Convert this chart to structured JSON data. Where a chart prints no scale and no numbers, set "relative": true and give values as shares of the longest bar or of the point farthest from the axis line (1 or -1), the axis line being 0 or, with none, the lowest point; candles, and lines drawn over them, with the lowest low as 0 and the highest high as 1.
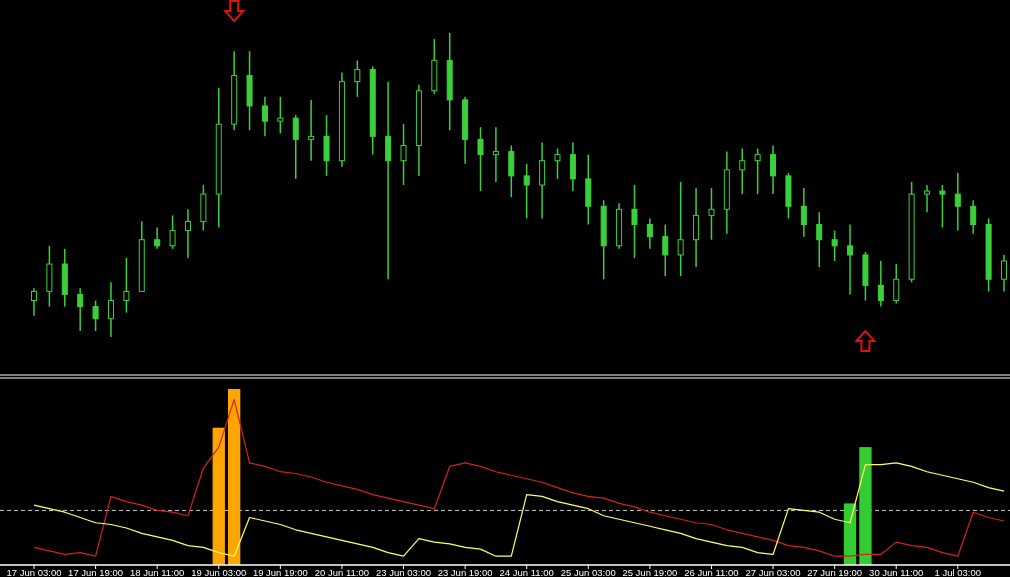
{
  "chart_data": [
    {
      "type": "candlestick",
      "relative": true,
      "color": "#3ccf3c",
      "ohlc": [
        [
          0.12,
          0.16,
          0.07,
          0.15
        ],
        [
          0.15,
          0.3,
          0.1,
          0.24
        ],
        [
          0.24,
          0.29,
          0.1,
          0.14
        ],
        [
          0.14,
          0.16,
          0.02,
          0.1
        ],
        [
          0.1,
          0.12,
          0.02,
          0.06
        ],
        [
          0.06,
          0.18,
          0,
          0.12
        ],
        [
          0.12,
          0.26,
          0.08,
          0.15
        ],
        [
          0.15,
          0.38,
          0.15,
          0.32
        ],
        [
          0.32,
          0.36,
          0.29,
          0.3
        ],
        [
          0.3,
          0.4,
          0.29,
          0.35
        ],
        [
          0.35,
          0.42,
          0.26,
          0.38
        ],
        [
          0.38,
          0.5,
          0.35,
          0.47
        ],
        [
          0.47,
          0.82,
          0.36,
          0.7
        ],
        [
          0.7,
          0.94,
          0.68,
          0.86
        ],
        [
          0.86,
          0.94,
          0.68,
          0.76
        ],
        [
          0.76,
          0.79,
          0.66,
          0.71
        ],
        [
          0.71,
          0.79,
          0.67,
          0.72
        ],
        [
          0.72,
          0.73,
          0.52,
          0.65
        ],
        [
          0.65,
          0.78,
          0.58,
          0.66
        ],
        [
          0.66,
          0.73,
          0.53,
          0.58
        ],
        [
          0.58,
          0.87,
          0.56,
          0.84
        ],
        [
          0.84,
          0.91,
          0.79,
          0.88
        ],
        [
          0.88,
          0.89,
          0.6,
          0.66
        ],
        [
          0.66,
          0.84,
          0.19,
          0.58
        ],
        [
          0.58,
          0.7,
          0.5,
          0.63
        ],
        [
          0.63,
          0.83,
          0.53,
          0.81
        ],
        [
          0.81,
          0.98,
          0.8,
          0.91
        ],
        [
          0.91,
          1,
          0.68,
          0.78
        ],
        [
          0.78,
          0.79,
          0.57,
          0.65
        ],
        [
          0.65,
          0.69,
          0.48,
          0.6
        ],
        [
          0.6,
          0.69,
          0.51,
          0.61
        ],
        [
          0.61,
          0.63,
          0.46,
          0.53
        ],
        [
          0.53,
          0.57,
          0.39,
          0.5
        ],
        [
          0.5,
          0.64,
          0.39,
          0.58
        ],
        [
          0.58,
          0.62,
          0.52,
          0.6
        ],
        [
          0.6,
          0.64,
          0.48,
          0.52
        ],
        [
          0.52,
          0.6,
          0.37,
          0.43
        ],
        [
          0.43,
          0.45,
          0.19,
          0.3
        ],
        [
          0.3,
          0.44,
          0.29,
          0.42
        ],
        [
          0.42,
          0.5,
          0.26,
          0.37
        ],
        [
          0.37,
          0.39,
          0.29,
          0.33
        ],
        [
          0.33,
          0.37,
          0.2,
          0.27
        ],
        [
          0.27,
          0.51,
          0.2,
          0.32
        ],
        [
          0.32,
          0.49,
          0.23,
          0.4
        ],
        [
          0.4,
          0.49,
          0.32,
          0.42
        ],
        [
          0.42,
          0.61,
          0.34,
          0.55
        ],
        [
          0.55,
          0.62,
          0.47,
          0.58
        ],
        [
          0.58,
          0.62,
          0.47,
          0.6
        ],
        [
          0.6,
          0.63,
          0.47,
          0.53
        ],
        [
          0.53,
          0.54,
          0.39,
          0.43
        ],
        [
          0.43,
          0.49,
          0.33,
          0.37
        ],
        [
          0.37,
          0.41,
          0.23,
          0.32
        ],
        [
          0.32,
          0.35,
          0.25,
          0.3
        ],
        [
          0.3,
          0.37,
          0.14,
          0.27
        ],
        [
          0.27,
          0.28,
          0.12,
          0.17
        ],
        [
          0.17,
          0.25,
          0.1,
          0.12
        ],
        [
          0.12,
          0.24,
          0.11,
          0.19
        ],
        [
          0.19,
          0.51,
          0.18,
          0.47
        ],
        [
          0.47,
          0.5,
          0.41,
          0.48
        ],
        [
          0.48,
          0.5,
          0.36,
          0.47
        ],
        [
          0.47,
          0.54,
          0.35,
          0.43
        ],
        [
          0.43,
          0.45,
          0.34,
          0.37
        ],
        [
          0.37,
          0.39,
          0.15,
          0.19
        ],
        [
          0.19,
          0.27,
          0.15,
          0.25
        ]
      ]
    },
    {
      "type": "bar",
      "relative": true,
      "tick_labels": "x",
      "categories": [
        "17 Jun 03:00",
        null,
        null,
        null,
        "17 Jun 19:00",
        null,
        null,
        null,
        "18 Jun 11:00",
        null,
        null,
        null,
        "19 Jun 03:00",
        null,
        null,
        null,
        "19 Jun 19:00",
        null,
        null,
        null,
        "20 Jun 11:00",
        null,
        null,
        null,
        "23 Jun 03:00",
        null,
        null,
        null,
        "23 Jun 19:00",
        null,
        null,
        null,
        "24 Jun 11:00",
        null,
        null,
        null,
        "25 Jun 03:00",
        null,
        null,
        null,
        "25 Jun 19:00",
        null,
        null,
        null,
        "26 Jun 11:00",
        null,
        null,
        null,
        "27 Jun 03:00",
        null,
        null,
        null,
        "27 Jun 19:00",
        null,
        null,
        null,
        "30 Jun 11:00",
        null,
        null,
        null,
        "1 Jul 03:00",
        null,
        null,
        null
      ],
      "series": [
        {
          "color": "#ffa500",
          "values": [
            null,
            null,
            null,
            null,
            null,
            null,
            null,
            null,
            null,
            null,
            null,
            null,
            0.78,
            1,
            null,
            null,
            null,
            null,
            null,
            null,
            null,
            null,
            null,
            null,
            null,
            null,
            null,
            null,
            null,
            null,
            null,
            null,
            null,
            null,
            null,
            null,
            null,
            null,
            null,
            null,
            null,
            null,
            null,
            null,
            null,
            null,
            null,
            null,
            null,
            null,
            null,
            null,
            null,
            null,
            null,
            null,
            null,
            null,
            null,
            null,
            null,
            null,
            null,
            null
          ]
        },
        {
          "color": "#33cc33",
          "values": [
            null,
            null,
            null,
            null,
            null,
            null,
            null,
            null,
            null,
            null,
            null,
            null,
            null,
            null,
            null,
            null,
            null,
            null,
            null,
            null,
            null,
            null,
            null,
            null,
            null,
            null,
            null,
            null,
            null,
            null,
            null,
            null,
            null,
            null,
            null,
            null,
            null,
            null,
            null,
            null,
            null,
            null,
            null,
            null,
            null,
            null,
            null,
            null,
            null,
            null,
            null,
            null,
            null,
            0.35,
            0.67,
            null,
            null,
            null,
            null,
            null,
            null,
            null,
            null,
            null
          ]
        },
        {
          "type": "line",
          "color": "#d42020",
          "values": [
            0.1,
            0.08,
            0.06,
            0.07,
            0.05,
            0.39,
            0.36,
            0.34,
            0.31,
            0.3,
            0.28,
            0.55,
            0.67,
            0.94,
            0.58,
            0.56,
            0.53,
            0.52,
            0.5,
            0.47,
            0.45,
            0.43,
            0.4,
            0.38,
            0.36,
            0.34,
            0.32,
            0.56,
            0.58,
            0.56,
            0.53,
            0.51,
            0.49,
            0.47,
            0.44,
            0.41,
            0.39,
            0.38,
            0.35,
            0.33,
            0.3,
            0.28,
            0.26,
            0.24,
            0.23,
            0.2,
            0.18,
            0.16,
            0.14,
            0.11,
            0.1,
            0.08,
            0.05,
            0.05,
            0.06,
            0.06,
            0.13,
            0.11,
            0.1,
            0.07,
            0.05,
            0.3,
            0.27,
            0.25
          ]
        },
        {
          "type": "line",
          "color": "#ffff66",
          "values": [
            0.34,
            0.32,
            0.3,
            0.27,
            0.24,
            0.23,
            0.21,
            0.18,
            0.16,
            0.14,
            0.11,
            0.1,
            0.07,
            0.05,
            0.27,
            0.25,
            0.23,
            0.2,
            0.18,
            0.16,
            0.14,
            0.12,
            0.1,
            0.07,
            0.05,
            0.15,
            0.13,
            0.12,
            0.1,
            0.09,
            0.05,
            0.05,
            0.4,
            0.39,
            0.36,
            0.34,
            0.32,
            0.28,
            0.26,
            0.24,
            0.22,
            0.2,
            0.18,
            0.15,
            0.13,
            0.11,
            0.1,
            0.07,
            0.06,
            0.32,
            0.31,
            0.3,
            0.26,
            0.24,
            0.57,
            0.57,
            0.58,
            0.56,
            0.53,
            0.51,
            0.49,
            0.47,
            0.44,
            0.42
          ]
        }
      ],
      "ref_lines": [
        {
          "axis": "y",
          "value": 0.31,
          "color": "#c8c8c8",
          "line_style": "dashed"
        }
      ]
    }
  ]
}
